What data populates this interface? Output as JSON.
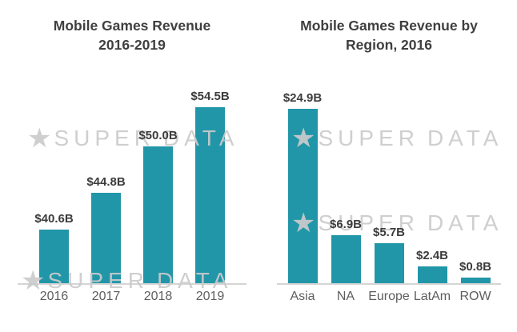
{
  "page": {
    "background": "#ffffff"
  },
  "colors": {
    "bar": "#2196A8",
    "title_text": "#3f3f3f",
    "value_label_text": "#3c3c3c",
    "axis_label_text": "#5e5e5e",
    "axis_line": "#d4d4d4",
    "watermark": "#cbcbcb"
  },
  "watermark": {
    "star": "★",
    "word1": "SUPER",
    "word2": "DATA"
  },
  "chart_data": [
    {
      "type": "bar",
      "title": "Mobile Games Revenue 2016-2019",
      "title_line1": "Mobile Games Revenue",
      "title_line2": "2016-2019",
      "categories": [
        "2016",
        "2017",
        "2018",
        "2019"
      ],
      "values": [
        40.6,
        44.8,
        50.0,
        54.5
      ],
      "value_labels": [
        "$40.6B",
        "$44.8B",
        "$50.0B",
        "$54.5B"
      ],
      "bar_color": "#2196A8",
      "ylim": [
        34.5,
        56.1
      ],
      "axis_zero_based": false,
      "grid": false,
      "legend": false
    },
    {
      "type": "bar",
      "title": "Mobile Games Revenue by Region, 2016",
      "title_line1": "Mobile Games Revenue by",
      "title_line2": "Region, 2016",
      "categories": [
        "Asia",
        "NA",
        "Europe",
        "LatAm",
        "ROW"
      ],
      "values": [
        24.9,
        6.9,
        5.7,
        2.4,
        0.8
      ],
      "value_labels": [
        "$24.9B",
        "$6.9B",
        "$5.7B",
        "$2.4B",
        "$0.8B"
      ],
      "bar_color": "#2196A8",
      "ylim": [
        0,
        27.2
      ],
      "axis_zero_based": true,
      "grid": false,
      "legend": false
    }
  ]
}
